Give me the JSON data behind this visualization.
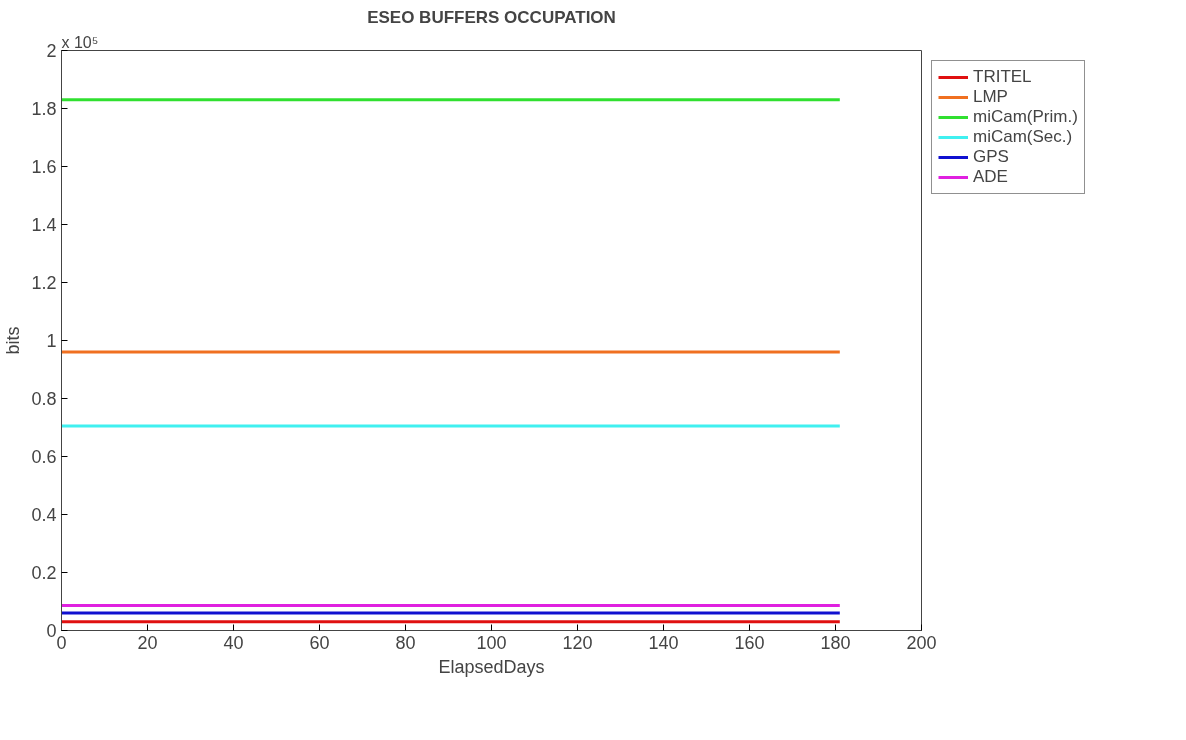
{
  "chart_data": {
    "type": "line",
    "title": "ESEO BUFFERS OCCUPATION",
    "xlabel": "ElapsedDays",
    "ylabel": "bits",
    "annotations": [
      "x 10⁵"
    ],
    "x": [
      0,
      181
    ],
    "series": [
      {
        "name": "TRITEL",
        "color": "#e01010",
        "values": [
          0.03,
          0.03
        ]
      },
      {
        "name": "LMP",
        "color": "#f07020",
        "values": [
          0.96,
          0.96
        ]
      },
      {
        "name": "miCam(Prim.)",
        "color": "#30e030",
        "values": [
          1.83,
          1.83
        ]
      },
      {
        "name": "miCam(Sec.)",
        "color": "#40f0f0",
        "values": [
          0.705,
          0.705
        ]
      },
      {
        "name": "GPS",
        "color": "#1010d0",
        "values": [
          0.06,
          0.06
        ]
      },
      {
        "name": "ADE",
        "color": "#e020e0",
        "values": [
          0.086,
          0.086
        ]
      }
    ],
    "xlim": [
      0,
      200
    ],
    "xticks": [
      0,
      20,
      40,
      60,
      80,
      100,
      120,
      140,
      160,
      180,
      200
    ],
    "ylim": [
      0,
      2
    ],
    "yticks": [
      0,
      0.2,
      0.4,
      0.6,
      0.8,
      1,
      1.2,
      1.4,
      1.6,
      1.8,
      2
    ],
    "grid": false,
    "legend": "top right",
    "marker": "none",
    "line_style": "solid"
  }
}
